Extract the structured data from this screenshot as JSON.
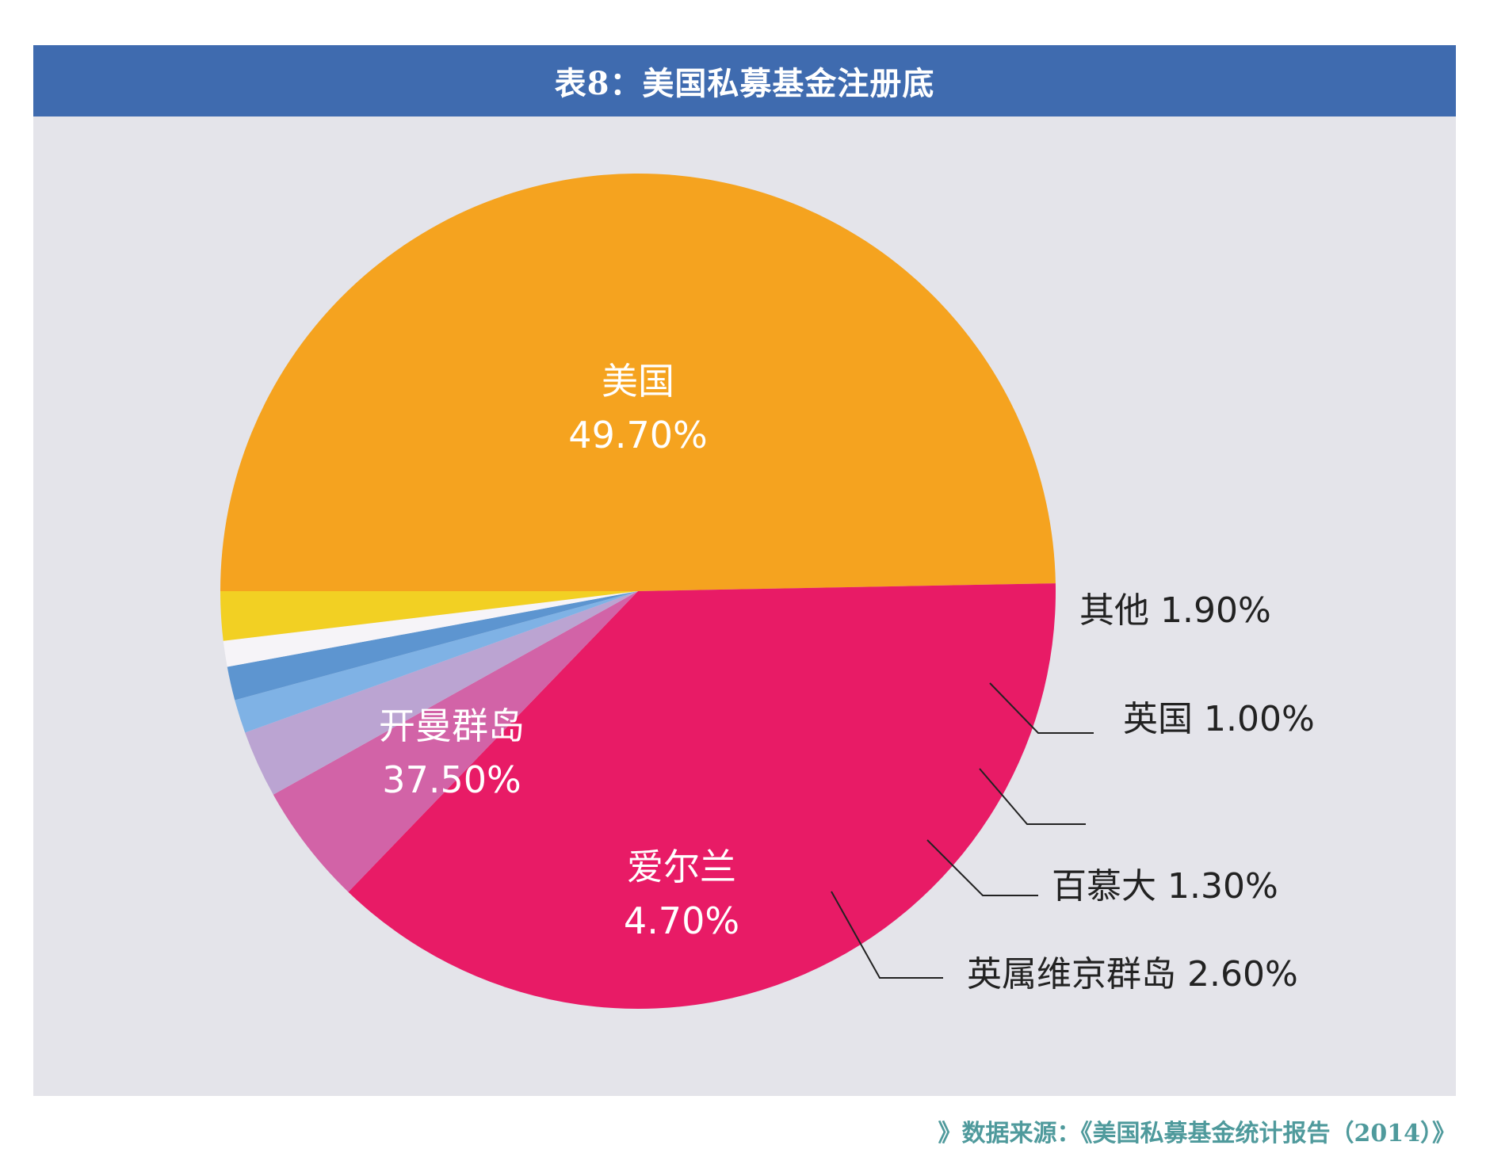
{
  "chart_data": {
    "type": "pie",
    "title": "表8：美国私募基金注册底",
    "slices": [
      {
        "label": "美国",
        "value": 49.7,
        "value_text": "49.70%",
        "color": "#f5a31f",
        "text_color": "#ffffff"
      },
      {
        "label": "开曼群岛",
        "value": 37.5,
        "value_text": "37.50%",
        "color": "#e81b66",
        "text_color": "#ffffff"
      },
      {
        "label": "爱尔兰",
        "value": 4.7,
        "value_text": "4.70%",
        "color": "#d263a7",
        "text_color": "#ffffff"
      },
      {
        "label": "英属维京群岛",
        "value": 2.6,
        "value_text": "2.60%",
        "color": "#bba4d2",
        "text_color": "#222222"
      },
      {
        "label": "百慕大",
        "value": 1.3,
        "value_text": "1.30%",
        "color": "#7fb2e5",
        "text_color": "#222222"
      },
      {
        "label": "",
        "value": 1.3,
        "value_text": "",
        "color": "#5d95d0",
        "text_color": "#222222"
      },
      {
        "label": "英国",
        "value": 1.0,
        "value_text": "1.00%",
        "color": "#f6f4f8",
        "text_color": "#222222"
      },
      {
        "label": "其他",
        "value": 1.9,
        "value_text": "1.90%",
        "color": "#f2d023",
        "text_color": "#222222"
      }
    ]
  },
  "source": "》数据来源：《美国私募基金统计报告（2014）》"
}
